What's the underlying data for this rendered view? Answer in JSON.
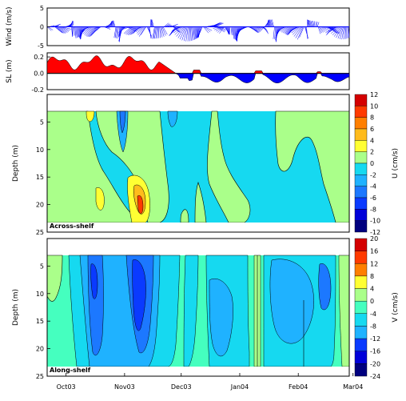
{
  "chart_data": [
    {
      "type": "line",
      "ylabel": "Wind (m/s)",
      "yticks": [
        -5,
        0,
        5
      ],
      "ylim": [
        -5,
        5
      ],
      "xlim": [
        0,
        160
      ]
    },
    {
      "type": "area",
      "ylabel": "SL (m)",
      "yticks": [
        -0.2,
        0.0,
        0.2
      ],
      "ylim": [
        -0.2,
        0.25
      ],
      "xlim": [
        0,
        160
      ],
      "colors": {
        "positive": "#ff0000",
        "negative": "#0000ff"
      }
    },
    {
      "type": "heatmap",
      "ylabel": "Depth (m)",
      "yticks": [
        5,
        10,
        15,
        20,
        25
      ],
      "ylim": [
        25,
        0
      ],
      "xlim": [
        0,
        160
      ],
      "annotation": "Across-shelf",
      "colorbar_label": "U (cm/s)",
      "colorbar_ticks": [
        12,
        10,
        8,
        6,
        4,
        2,
        0,
        -2,
        -4,
        -6,
        -8,
        -10,
        -12
      ]
    },
    {
      "type": "heatmap",
      "ylabel": "Depth (m)",
      "yticks": [
        5,
        10,
        15,
        20,
        25
      ],
      "ylim": [
        25,
        0
      ],
      "xlim": [
        0,
        160
      ],
      "annotation": "Along-shelf",
      "colorbar_label": "V (cm/s)",
      "colorbar_ticks": [
        20,
        16,
        12,
        8,
        4,
        0,
        -4,
        -8,
        -12,
        -16,
        -20,
        -24
      ],
      "xtick_labels": [
        "Oct03",
        "Nov03",
        "Dec03",
        "Jan04",
        "Feb04",
        "Mar04"
      ],
      "xtick_values": [
        10,
        41,
        71,
        102,
        133,
        162
      ]
    }
  ],
  "colors": {
    "wind": "#0000ff",
    "scale": [
      "#00007f",
      "#0000d9",
      "#0a3aff",
      "#1c78ff",
      "#1fb2ff",
      "#16d9f0",
      "#45ffbf",
      "#aaff8a",
      "#ffff33",
      "#ffbb1c",
      "#ff7f00",
      "#ff3a00",
      "#d40000"
    ]
  }
}
